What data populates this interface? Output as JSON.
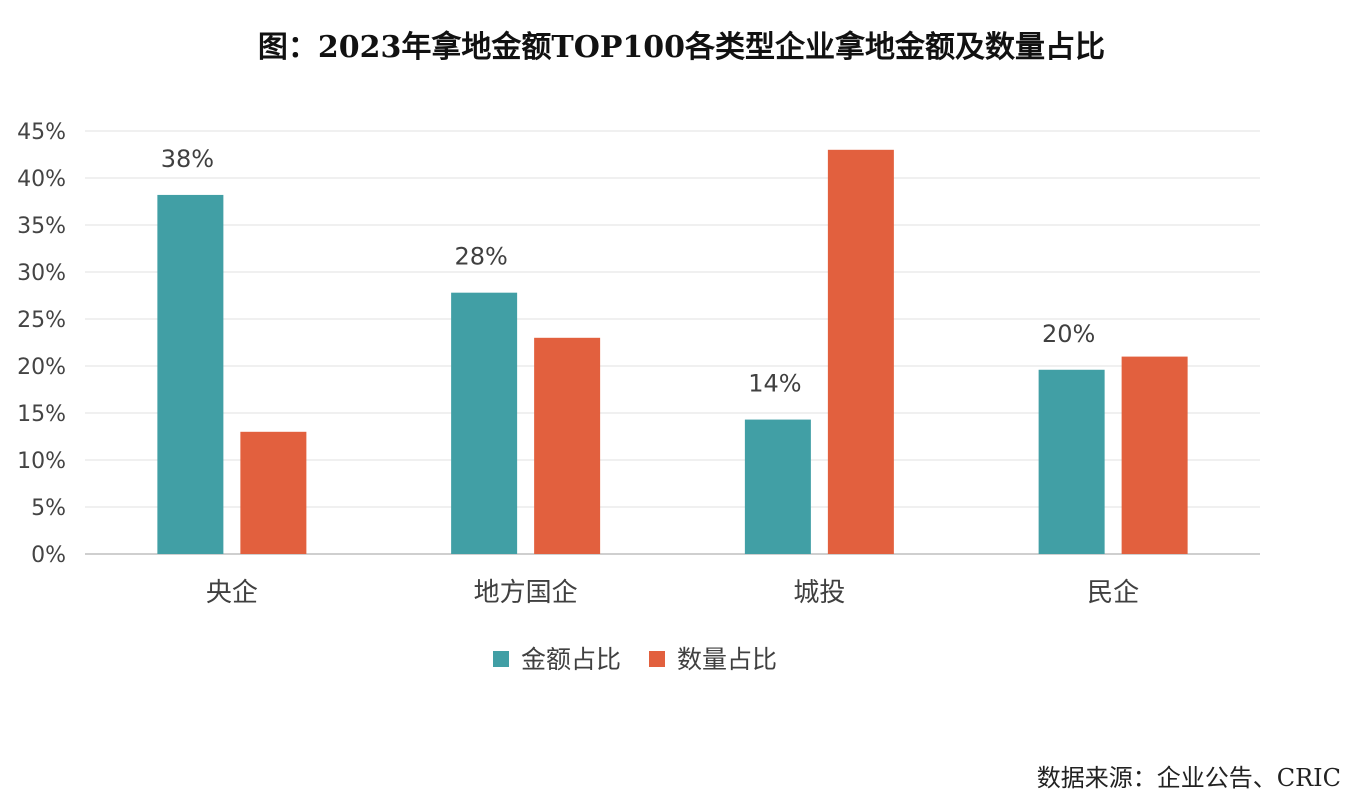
{
  "title": "图：2023年拿地金额TOP100各类型企业拿地金额及数量占比",
  "source": "数据来源：企业公告、CRIC",
  "chart_data": {
    "type": "bar",
    "categories": [
      "央企",
      "地方国企",
      "城投",
      "民企"
    ],
    "series": [
      {
        "name": "金额占比",
        "values": [
          38.2,
          27.8,
          14.3,
          19.6
        ],
        "color": "#419FA5",
        "labels": [
          "38%",
          "28%",
          "14%",
          "20%"
        ]
      },
      {
        "name": "数量占比",
        "values": [
          13,
          23,
          43,
          21
        ],
        "color": "#E2603E"
      }
    ],
    "ylim": [
      0,
      45
    ],
    "yticks": [
      0,
      5,
      10,
      15,
      20,
      25,
      30,
      35,
      40,
      45
    ],
    "ytick_labels": [
      "0%",
      "5%",
      "10%",
      "15%",
      "20%",
      "25%",
      "30%",
      "35%",
      "40%",
      "45%"
    ],
    "grid": true,
    "legend": "bottom"
  }
}
